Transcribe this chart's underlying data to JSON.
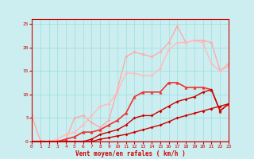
{
  "title": "",
  "xlabel": "Vent moyen/en rafales ( km/h )",
  "bg_color": "#cceef0",
  "grid_color": "#99dddd",
  "ylim": [
    0,
    26
  ],
  "xlim": [
    0,
    23
  ],
  "series": [
    {
      "x": [
        0,
        1,
        2,
        3,
        4,
        5,
        6,
        7,
        8,
        9,
        10,
        11,
        12,
        13,
        14,
        15,
        16,
        17,
        18,
        19,
        20,
        21,
        22,
        23
      ],
      "y": [
        5.5,
        0.2,
        0.0,
        0.0,
        0.5,
        5.0,
        5.5,
        4.0,
        3.0,
        4.5,
        11.0,
        18.0,
        19.0,
        18.5,
        18.0,
        19.0,
        21.0,
        24.5,
        21.0,
        21.5,
        21.5,
        21.0,
        15.0,
        16.5
      ],
      "color": "#ffaaaa",
      "lw": 1.0,
      "marker": "D",
      "ms": 2.0
    },
    {
      "x": [
        0,
        1,
        2,
        3,
        4,
        5,
        6,
        7,
        8,
        9,
        10,
        11,
        12,
        13,
        14,
        15,
        16,
        17,
        18,
        19,
        20,
        21,
        22,
        23
      ],
      "y": [
        0.0,
        0.0,
        0.0,
        0.5,
        1.5,
        2.0,
        3.5,
        5.5,
        7.5,
        8.0,
        10.5,
        14.5,
        14.5,
        14.0,
        14.0,
        15.5,
        19.5,
        21.0,
        21.0,
        21.5,
        21.0,
        16.5,
        15.0,
        16.0
      ],
      "color": "#ffbbbb",
      "lw": 1.0,
      "marker": "D",
      "ms": 2.0
    },
    {
      "x": [
        0,
        1,
        2,
        3,
        4,
        5,
        6,
        7,
        8,
        9,
        10,
        11,
        12,
        13,
        14,
        15,
        16,
        17,
        18,
        19,
        20,
        21,
        22,
        23
      ],
      "y": [
        0.0,
        0.0,
        0.0,
        0.0,
        0.5,
        1.0,
        2.0,
        2.0,
        2.5,
        3.5,
        4.5,
        6.0,
        9.5,
        10.5,
        10.5,
        10.5,
        12.5,
        12.5,
        11.5,
        11.5,
        11.5,
        11.0,
        6.5,
        8.0
      ],
      "color": "#ee3333",
      "lw": 1.2,
      "marker": "^",
      "ms": 3.0
    },
    {
      "x": [
        0,
        1,
        2,
        3,
        4,
        5,
        6,
        7,
        8,
        9,
        10,
        11,
        12,
        13,
        14,
        15,
        16,
        17,
        18,
        19,
        20,
        21,
        22,
        23
      ],
      "y": [
        0.0,
        0.0,
        0.0,
        0.0,
        0.0,
        0.0,
        0.0,
        0.5,
        1.5,
        2.0,
        2.5,
        3.5,
        5.0,
        5.5,
        5.5,
        6.5,
        7.5,
        8.5,
        9.0,
        9.5,
        10.5,
        11.0,
        6.5,
        8.0
      ],
      "color": "#cc0000",
      "lw": 1.0,
      "marker": "D",
      "ms": 2.0
    },
    {
      "x": [
        0,
        1,
        2,
        3,
        4,
        5,
        6,
        7,
        8,
        9,
        10,
        11,
        12,
        13,
        14,
        15,
        16,
        17,
        18,
        19,
        20,
        21,
        22,
        23
      ],
      "y": [
        0.0,
        0.0,
        0.0,
        0.0,
        0.0,
        0.0,
        0.0,
        0.0,
        0.5,
        0.8,
        1.2,
        1.5,
        2.0,
        2.5,
        3.0,
        3.5,
        4.2,
        5.0,
        5.5,
        6.0,
        6.5,
        7.0,
        7.5,
        8.0
      ],
      "color": "#cc0000",
      "lw": 1.0,
      "marker": "D",
      "ms": 2.0
    }
  ]
}
